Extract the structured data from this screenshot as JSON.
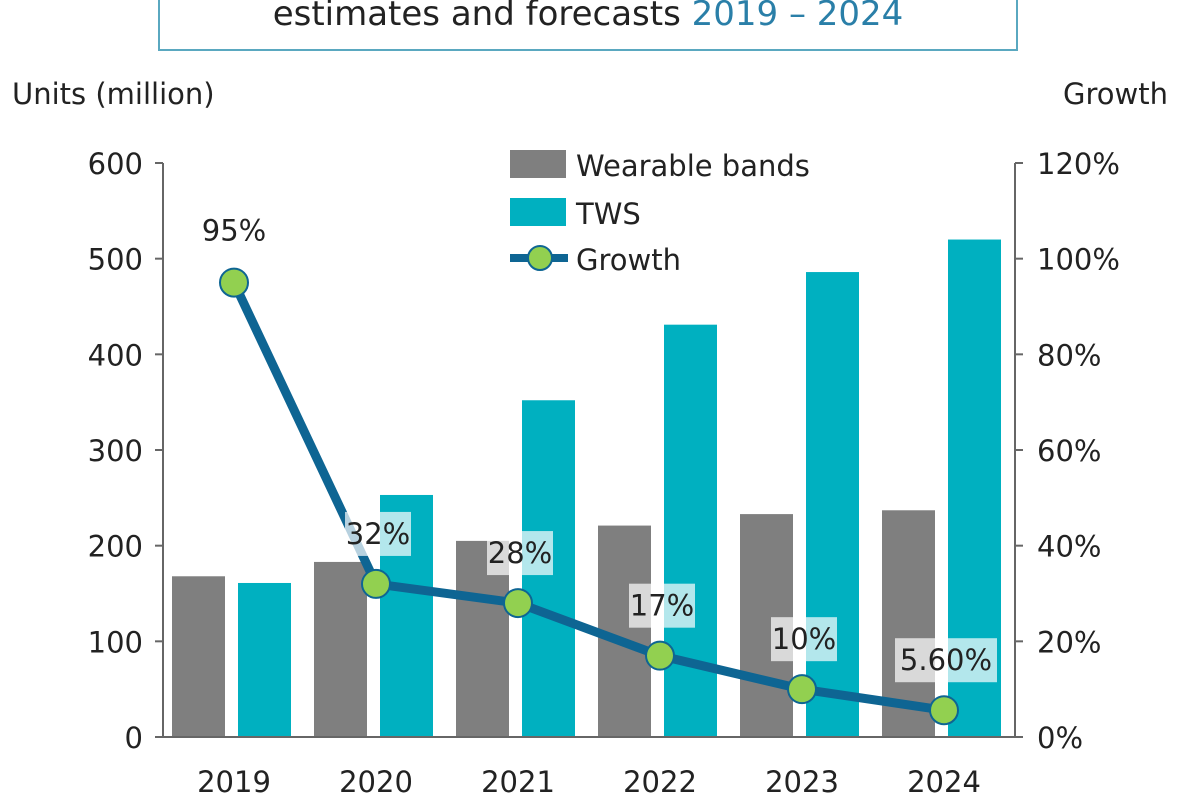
{
  "title": {
    "text": "estimates and forecasts",
    "years": "2019 – 2024"
  },
  "colors": {
    "bands": "#7f7f7f",
    "tws": "#00b0c0",
    "growth_line": "#0e6593",
    "growth_marker": "#92d050",
    "title_accent": "#2a7fa8",
    "frame": "#5aa8c0"
  },
  "chart_data": {
    "type": "bar+line",
    "title": "estimates and forecasts 2019 – 2024",
    "ylabel": "Units (million)",
    "y2label": "Growth",
    "categories": [
      "2019",
      "2020",
      "2021",
      "2022",
      "2023",
      "2024"
    ],
    "ylim": [
      0,
      600
    ],
    "yticks": [
      "0",
      "100",
      "200",
      "300",
      "400",
      "500",
      "600"
    ],
    "y2lim": [
      0,
      120
    ],
    "y2ticks": [
      "0%",
      "20%",
      "40%",
      "60%",
      "80%",
      "100%",
      "120%"
    ],
    "series": [
      {
        "name": "Wearable bands",
        "type": "bar",
        "values": [
          168,
          183,
          205,
          221,
          233,
          237
        ]
      },
      {
        "name": "TWS",
        "type": "bar",
        "values": [
          161,
          253,
          352,
          431,
          486,
          520
        ]
      },
      {
        "name": "Growth",
        "type": "line",
        "axis": "right",
        "values": [
          95,
          32,
          28,
          17,
          10,
          5.6
        ],
        "labels": [
          "95%",
          "32%",
          "28%",
          "17%",
          "10%",
          "5.60%"
        ]
      }
    ],
    "legend": "top-center",
    "grid": false
  }
}
